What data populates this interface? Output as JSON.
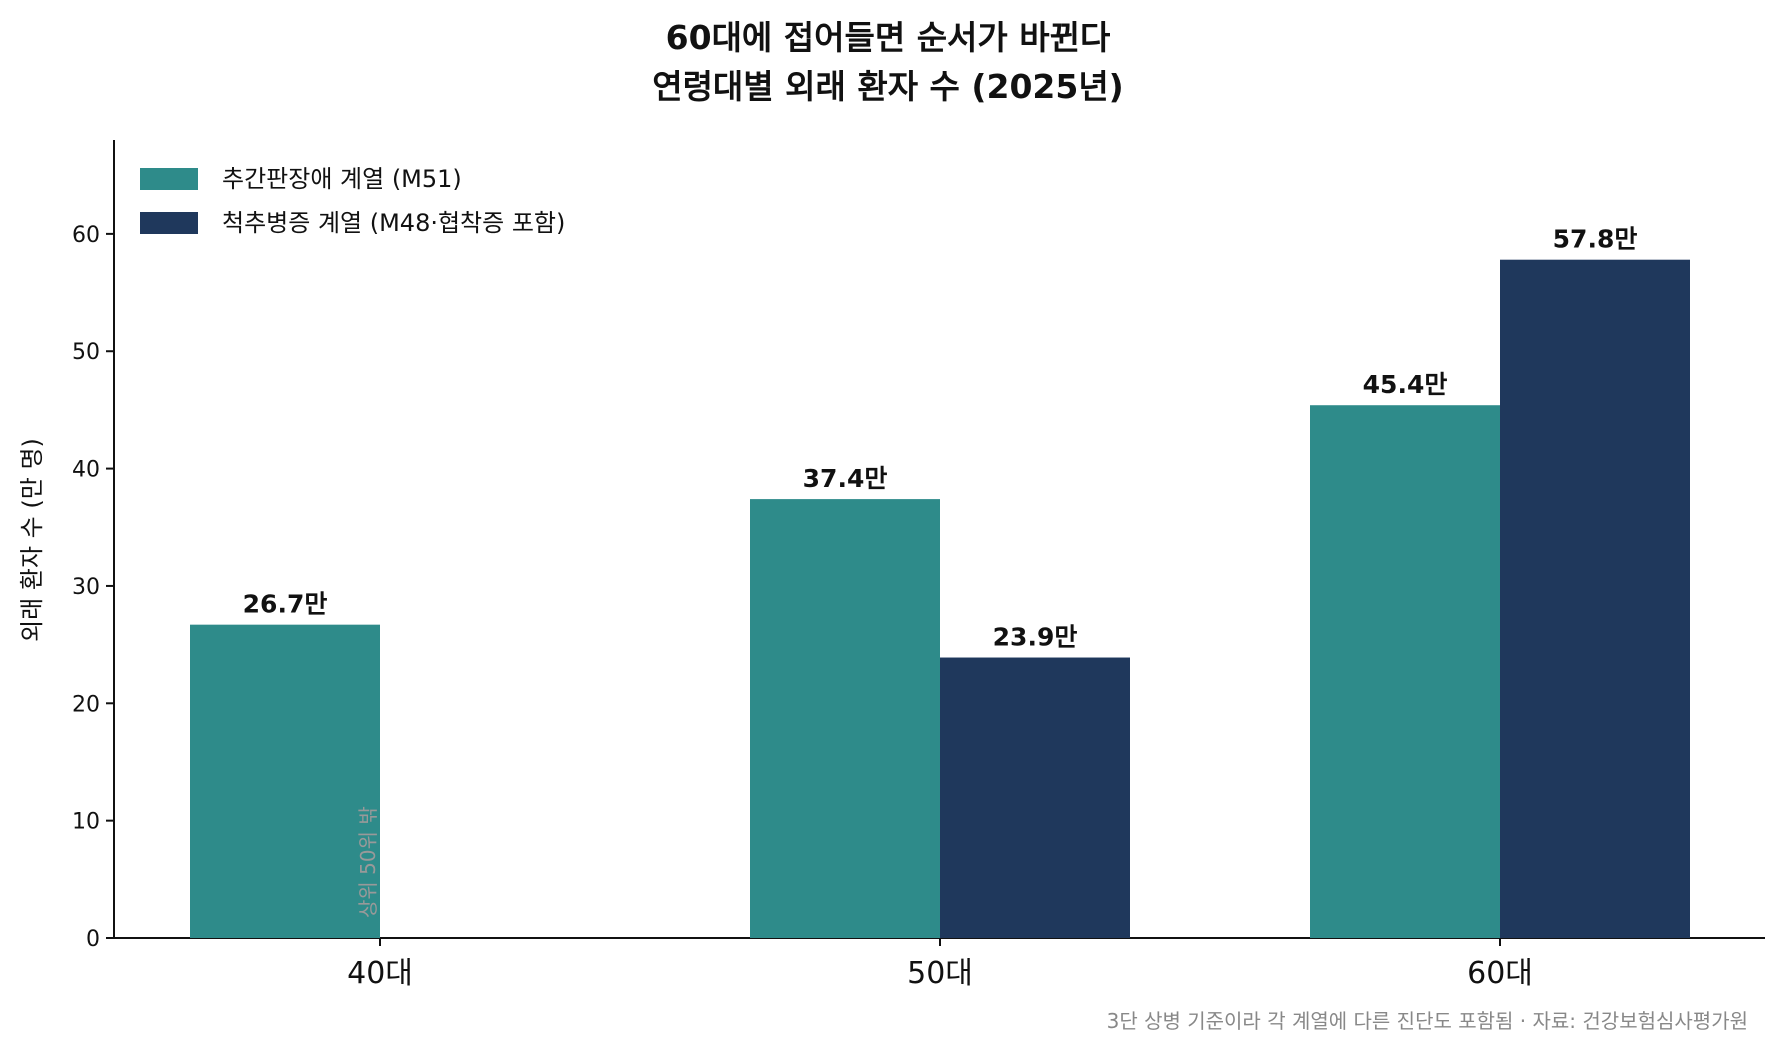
{
  "chart_data": {
    "type": "bar",
    "title_line1": "60대에 접어들면 순서가 바뀐다",
    "title_line2": "연령대별 외래 환자 수 (2025년)",
    "ylabel": "외래 환자 수 (만 명)",
    "xlabel": "",
    "ylim": [
      0,
      68
    ],
    "yticks": [
      0,
      10,
      20,
      30,
      40,
      50,
      60
    ],
    "categories": [
      "40대",
      "50대",
      "60대"
    ],
    "series": [
      {
        "name": "추간판장애 계열 (M51)",
        "color": "#2e8b8a",
        "values": [
          26.7,
          37.4,
          45.4
        ],
        "labels": [
          "26.7만",
          "37.4만",
          "45.4만"
        ]
      },
      {
        "name": "척추병증 계열 (M48·협착증 포함)",
        "color": "#1f385c",
        "values": [
          null,
          23.9,
          57.8
        ],
        "labels": [
          null,
          "23.9만",
          "57.8만"
        ]
      }
    ],
    "annotation": "상위 50위 밖",
    "grid": false,
    "legend_position": "top-left"
  },
  "footer": {
    "source_note": "3단 상병 기준이라 각 계열에 다른 진단도 포함됨 · 자료: 건강보험심사평가원"
  }
}
